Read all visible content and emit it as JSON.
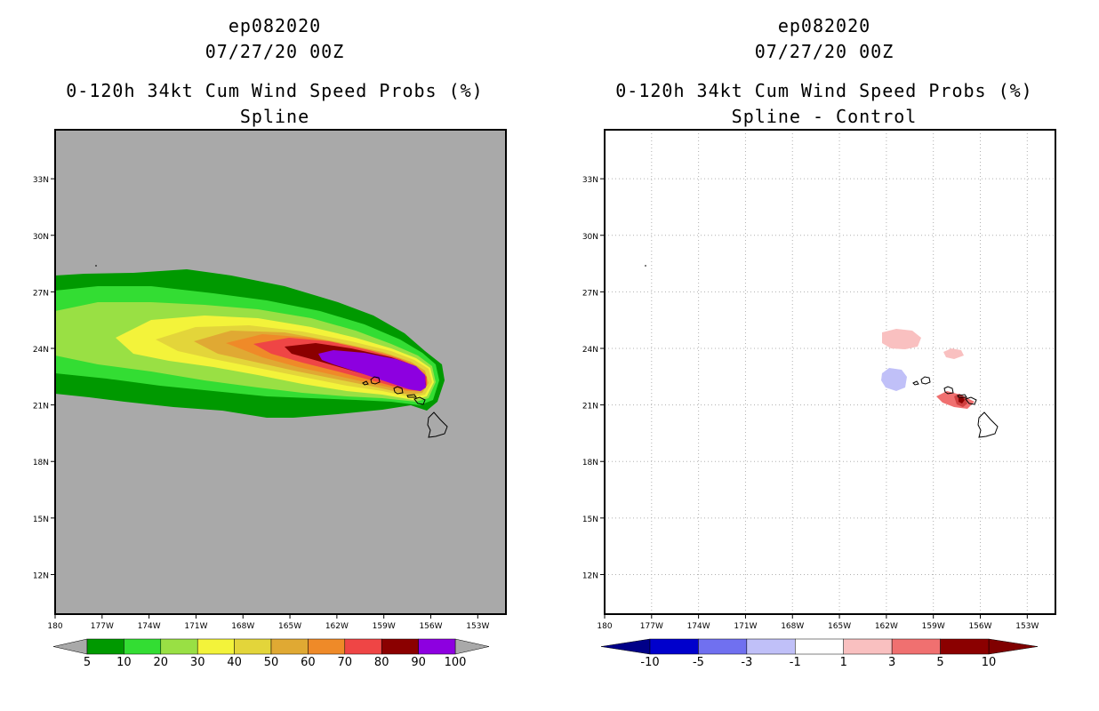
{
  "panels": [
    {
      "id": "left",
      "storm_id": "ep082020",
      "datetime": "07/27/20 00Z",
      "product": "0-120h 34kt Cum Wind Speed Probs (%)",
      "subtitle": "Spline",
      "background_color": "#a9a9a9",
      "colorbar": {
        "labels": [
          "5",
          "10",
          "20",
          "30",
          "40",
          "50",
          "60",
          "70",
          "80",
          "90",
          "100"
        ],
        "colors": [
          "#009900",
          "#33dd33",
          "#99e044",
          "#f3f33a",
          "#e3d53a",
          "#e0a933",
          "#ef8a28",
          "#ef4545",
          "#8b0000",
          "#8d00e0"
        ],
        "end_color": "#a9a9a9"
      },
      "contours": [
        {
          "label": "5",
          "color": "#009900"
        },
        {
          "label": "10",
          "color": "#33dd33"
        },
        {
          "label": "20",
          "color": "#99e044"
        },
        {
          "label": "30",
          "color": "#f3f33a"
        },
        {
          "label": "40",
          "color": "#e3d53a"
        },
        {
          "label": "50",
          "color": "#e0a933"
        },
        {
          "label": "60",
          "color": "#ef8a28"
        },
        {
          "label": "70",
          "color": "#ef4545"
        },
        {
          "label": "80",
          "color": "#8b0000"
        },
        {
          "label": "90",
          "color": "#8d00e0"
        }
      ]
    },
    {
      "id": "right",
      "storm_id": "ep082020",
      "datetime": "07/27/20 00Z",
      "product": "0-120h 34kt Cum Wind Speed Probs (%)",
      "subtitle": "Spline - Control",
      "background_color": "#ffffff",
      "colorbar": {
        "labels": [
          "-10",
          "-5",
          "-3",
          "-1",
          "1",
          "3",
          "5",
          "10"
        ],
        "colors": [
          "#0000cc",
          "#7070f0",
          "#c0c0f8",
          "#ffffff",
          "#f9c0c0",
          "#f07070",
          "#8b0000"
        ],
        "start_color": "#000088",
        "end_color": "#800000"
      },
      "anomalies": [
        {
          "label": "+1 north of Kauai",
          "color": "#f9c0c0"
        },
        {
          "label": "-1 west of Kauai",
          "color": "#c0c0f8"
        },
        {
          "label": "+1 north of Maui",
          "color": "#f9c0c0"
        },
        {
          "label": "+3 Maui",
          "color": "#f07070"
        },
        {
          "label": "+10 Maui core",
          "color": "#8b0000"
        }
      ]
    }
  ],
  "axes": {
    "lon_ticks": [
      "180",
      "177W",
      "174W",
      "171W",
      "168W",
      "165W",
      "162W",
      "159W",
      "156W",
      "153W"
    ],
    "lat_ticks": [
      "33N",
      "30N",
      "27N",
      "24N",
      "21N",
      "18N",
      "15N",
      "12N"
    ],
    "lon_range": [
      -180,
      -151.2
    ],
    "lat_range": [
      9.9,
      35.6
    ]
  }
}
